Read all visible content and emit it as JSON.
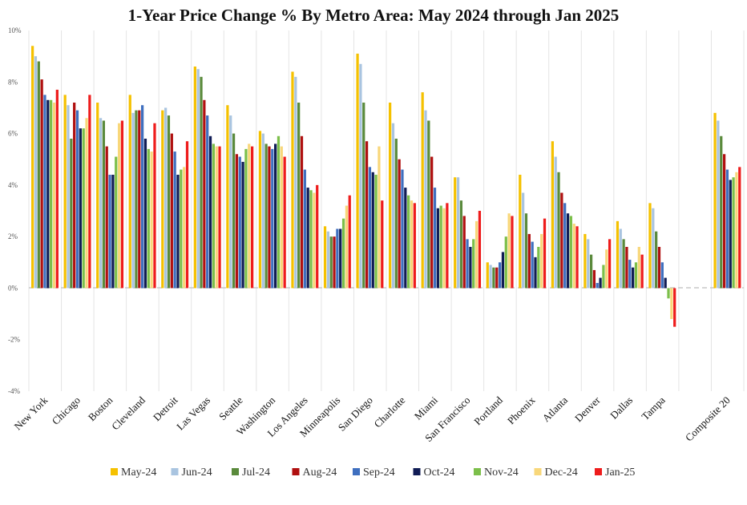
{
  "chart_data": {
    "type": "bar",
    "title": "1-Year Price Change % By Metro Area: May 2024 through Jan 2025",
    "xlabel": "",
    "ylabel": "",
    "ylim": [
      -4,
      10
    ],
    "yticks": [
      "-4%",
      "-2%",
      "0%",
      "2%",
      "4%",
      "6%",
      "8%",
      "10%"
    ],
    "ytick_values": [
      -4,
      -2,
      0,
      2,
      4,
      6,
      8,
      10
    ],
    "grid": "vertical separators between categories",
    "legend_position": "bottom",
    "categories": [
      "New York",
      "Chicago",
      "Boston",
      "Cleveland",
      "Detroit",
      "Las Vegas",
      "Seattle",
      "Washington",
      "Los Angeles",
      "Minneapolis",
      "San Diego",
      "Charlotte",
      "Miami",
      "San Francisco",
      "Portland",
      "Phoenix",
      "Atlanta",
      "Denver",
      "Dallas",
      "Tampa",
      "",
      "Composite 20"
    ],
    "series": [
      {
        "name": "May-24",
        "color": "#f5c100",
        "values": [
          9.4,
          7.5,
          7.2,
          7.5,
          6.9,
          8.6,
          7.1,
          6.1,
          8.4,
          2.4,
          9.1,
          7.2,
          7.6,
          4.3,
          1.0,
          4.4,
          5.7,
          2.1,
          2.6,
          3.3,
          null,
          6.8
        ]
      },
      {
        "name": "Jun-24",
        "color": "#a9c4e0",
        "values": [
          9.0,
          7.1,
          6.6,
          6.8,
          7.0,
          8.5,
          6.7,
          6.0,
          8.2,
          2.2,
          8.7,
          6.4,
          6.9,
          4.3,
          0.9,
          3.7,
          5.1,
          1.9,
          2.3,
          3.1,
          null,
          6.5
        ]
      },
      {
        "name": "Jul-24",
        "color": "#5a8a3c",
        "values": [
          8.8,
          5.8,
          6.5,
          6.9,
          6.7,
          8.2,
          6.0,
          5.6,
          7.2,
          2.0,
          7.2,
          5.8,
          6.5,
          3.4,
          0.8,
          2.9,
          4.5,
          1.3,
          1.9,
          2.2,
          null,
          5.9
        ]
      },
      {
        "name": "Aug-24",
        "color": "#b01010",
        "values": [
          8.1,
          7.2,
          5.5,
          6.9,
          6.0,
          7.3,
          5.2,
          5.5,
          5.9,
          2.0,
          5.7,
          5.0,
          5.1,
          2.8,
          0.8,
          2.1,
          3.7,
          0.7,
          1.6,
          1.6,
          null,
          5.2
        ]
      },
      {
        "name": "Sep-24",
        "color": "#3f6fbf",
        "values": [
          7.5,
          6.9,
          4.4,
          7.1,
          5.3,
          6.7,
          5.1,
          5.4,
          4.6,
          2.3,
          4.7,
          4.6,
          3.9,
          1.9,
          1.0,
          1.8,
          3.3,
          0.2,
          1.1,
          1.0,
          null,
          4.6
        ]
      },
      {
        "name": "Oct-24",
        "color": "#101c55",
        "values": [
          7.3,
          6.2,
          4.4,
          5.8,
          4.4,
          5.9,
          4.9,
          5.6,
          3.9,
          2.3,
          4.5,
          3.9,
          3.1,
          1.6,
          1.4,
          1.2,
          2.9,
          0.4,
          0.8,
          0.4,
          null,
          4.2
        ]
      },
      {
        "name": "Nov-24",
        "color": "#7cbf4a",
        "values": [
          7.3,
          6.2,
          5.1,
          5.4,
          4.6,
          5.6,
          5.4,
          5.9,
          3.8,
          2.7,
          4.4,
          3.6,
          3.2,
          1.9,
          2.0,
          1.6,
          2.8,
          0.9,
          1.0,
          -0.4,
          null,
          4.3
        ]
      },
      {
        "name": "Dec-24",
        "color": "#f8d77a",
        "values": [
          7.2,
          6.6,
          6.4,
          5.3,
          4.7,
          5.5,
          5.6,
          5.5,
          3.7,
          3.2,
          5.5,
          3.4,
          3.1,
          2.6,
          2.9,
          2.1,
          2.5,
          1.5,
          1.6,
          -1.2,
          null,
          4.5
        ]
      },
      {
        "name": "Jan-25",
        "color": "#ee1c1c",
        "values": [
          7.7,
          7.5,
          6.5,
          6.4,
          5.7,
          5.5,
          5.5,
          5.1,
          4.0,
          3.6,
          3.4,
          3.3,
          3.3,
          3.0,
          2.8,
          2.7,
          2.4,
          1.9,
          1.3,
          -1.5,
          null,
          4.7
        ]
      }
    ]
  }
}
